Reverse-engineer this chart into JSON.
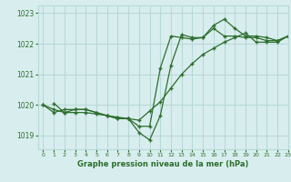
{
  "title": "Graphe pression niveau de la mer (hPa)",
  "bg_color": "#d8eeee",
  "grid_color": "#b8d8d8",
  "line_color": "#2d6e2d",
  "xlim": [
    -0.5,
    23
  ],
  "ylim": [
    1018.55,
    1023.25
  ],
  "yticks": [
    1019,
    1020,
    1021,
    1022,
    1023
  ],
  "xticks": [
    0,
    1,
    2,
    3,
    4,
    5,
    6,
    7,
    8,
    9,
    10,
    11,
    12,
    13,
    14,
    15,
    16,
    17,
    18,
    19,
    20,
    21,
    22,
    23
  ],
  "series": [
    {
      "x": [
        1,
        2,
        3,
        4,
        5,
        6,
        7,
        8,
        9,
        10,
        11,
        12,
        13,
        14,
        15,
        16,
        17,
        18,
        19,
        20,
        21,
        22,
        23
      ],
      "y": [
        1020.05,
        1019.75,
        1019.85,
        1019.85,
        1019.75,
        1019.65,
        1019.55,
        1019.55,
        1019.1,
        1018.85,
        1019.65,
        1021.3,
        1022.3,
        1022.2,
        1022.2,
        1022.6,
        1022.8,
        1022.5,
        1022.25,
        1022.25,
        1022.2,
        1022.1,
        1022.25
      ]
    },
    {
      "x": [
        0,
        1,
        2,
        3,
        4,
        5,
        6,
        7,
        8,
        9,
        10,
        11,
        12,
        13,
        14,
        15,
        16,
        17,
        18,
        19,
        20,
        21,
        22,
        23
      ],
      "y": [
        1020.0,
        1019.75,
        1019.85,
        1019.85,
        1019.85,
        1019.75,
        1019.65,
        1019.55,
        1019.55,
        1019.3,
        1019.3,
        1021.2,
        1022.25,
        1022.2,
        1022.15,
        1022.2,
        1022.5,
        1022.25,
        1022.25,
        1022.2,
        1022.2,
        1022.1,
        1022.1,
        1022.25
      ]
    },
    {
      "x": [
        0,
        1,
        2,
        3,
        4,
        5,
        6,
        7,
        8,
        9,
        10,
        11,
        12,
        13,
        14,
        15,
        16,
        17,
        18,
        19,
        20,
        21,
        22,
        23
      ],
      "y": [
        1020.0,
        1019.85,
        1019.75,
        1019.75,
        1019.75,
        1019.7,
        1019.65,
        1019.6,
        1019.55,
        1019.5,
        1019.8,
        1020.1,
        1020.55,
        1021.0,
        1021.35,
        1021.65,
        1021.85,
        1022.05,
        1022.2,
        1022.35,
        1022.05,
        1022.05,
        1022.05,
        1022.25
      ]
    }
  ]
}
